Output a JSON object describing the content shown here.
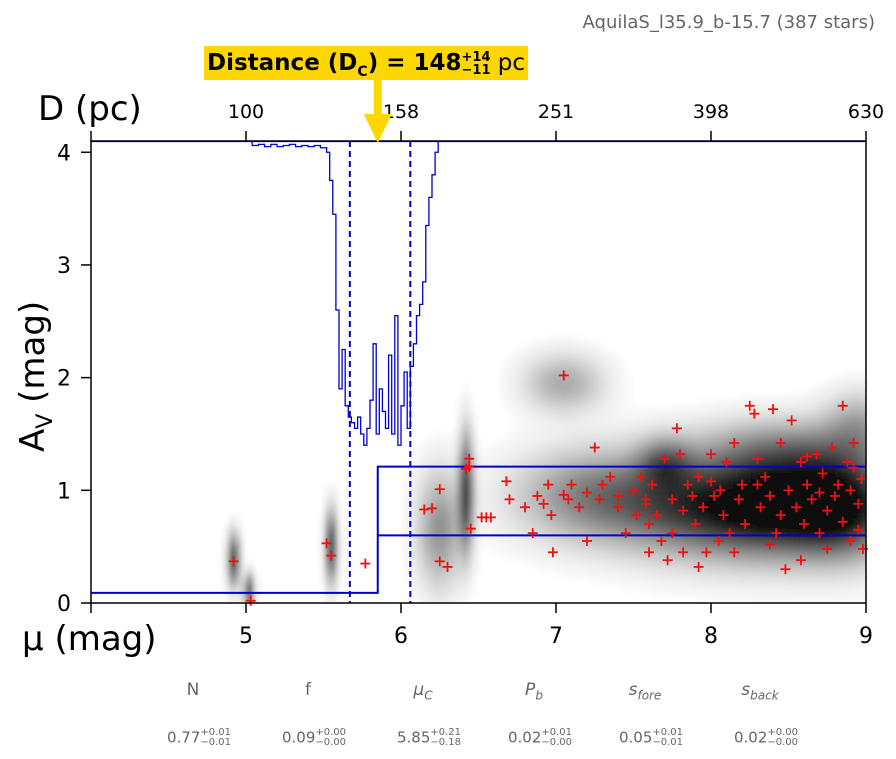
{
  "field_title": "AquilaS_l35.9_b-15.7 (387 stars)",
  "distance_annotation": {
    "prefix": "Distance (D",
    "subscript": "C",
    "middle": ") = 148",
    "plus": "+14",
    "minus": "−11",
    "unit": "pc"
  },
  "params": [
    {
      "label": "N",
      "sub": "",
      "italic": false,
      "value": "0.77",
      "plus": "+0.01",
      "minus": "−0.01"
    },
    {
      "label": "f",
      "sub": "",
      "italic": false,
      "value": "0.09",
      "plus": "+0.00",
      "minus": "−0.00"
    },
    {
      "label": "μ",
      "sub": "C",
      "italic": true,
      "value": "5.85",
      "plus": "+0.21",
      "minus": "−0.18"
    },
    {
      "label": "P",
      "sub": "b",
      "italic": true,
      "value": "0.02",
      "plus": "+0.01",
      "minus": "−0.00"
    },
    {
      "label": "s",
      "sub": "fore",
      "italic": true,
      "value": "0.05",
      "plus": "+0.01",
      "minus": "−0.01"
    },
    {
      "label": "s",
      "sub": "back",
      "italic": true,
      "value": "0.02",
      "plus": "+0.00",
      "minus": "−0.00"
    }
  ],
  "chart_data": {
    "type": "scatter",
    "xlabel": "μ (mag)",
    "ylabel": "A_V (mag)",
    "top_xlabel": "D (pc)",
    "xlim": [
      4,
      9
    ],
    "ylim": [
      0,
      4.1
    ],
    "xticks": [
      5,
      6,
      7,
      8,
      9
    ],
    "xtick_labels": [
      "5",
      "6",
      "7",
      "8",
      "9"
    ],
    "yticks": [
      0,
      1,
      2,
      3,
      4
    ],
    "ytick_labels": [
      "0",
      "1",
      "2",
      "3",
      "4"
    ],
    "top_ticks": [
      5,
      6,
      7,
      8,
      9
    ],
    "top_tick_labels": [
      "100",
      "158",
      "251",
      "398",
      "630"
    ],
    "colors": {
      "stars": "#ee1111",
      "model": "#0000cc",
      "annotation": "#ffd700"
    },
    "model_step": {
      "mu_c": 5.85,
      "foreground_av": 0.09,
      "background_low_av": 0.6,
      "background_high_av": 1.21
    },
    "uncertainty_lines": [
      5.67,
      6.06
    ],
    "distance_arrow_mu": 5.85,
    "posterior_histogram": [
      [
        5.0,
        4.1
      ],
      [
        5.04,
        4.06
      ],
      [
        5.08,
        4.07
      ],
      [
        5.12,
        4.05
      ],
      [
        5.16,
        4.07
      ],
      [
        5.2,
        4.05
      ],
      [
        5.24,
        4.06
      ],
      [
        5.28,
        4.07
      ],
      [
        5.32,
        4.05
      ],
      [
        5.36,
        4.06
      ],
      [
        5.4,
        4.05
      ],
      [
        5.44,
        4.06
      ],
      [
        5.48,
        4.04
      ],
      [
        5.52,
        4.0
      ],
      [
        5.54,
        3.75
      ],
      [
        5.56,
        3.45
      ],
      [
        5.58,
        2.6
      ],
      [
        5.6,
        1.9
      ],
      [
        5.62,
        2.25
      ],
      [
        5.64,
        1.75
      ],
      [
        5.66,
        1.65
      ],
      [
        5.68,
        1.6
      ],
      [
        5.7,
        1.55
      ],
      [
        5.72,
        1.65
      ],
      [
        5.74,
        1.5
      ],
      [
        5.76,
        1.4
      ],
      [
        5.78,
        1.55
      ],
      [
        5.8,
        1.8
      ],
      [
        5.82,
        2.3
      ],
      [
        5.84,
        1.5
      ],
      [
        5.86,
        1.9
      ],
      [
        5.88,
        1.7
      ],
      [
        5.9,
        1.55
      ],
      [
        5.92,
        2.2
      ],
      [
        5.94,
        1.5
      ],
      [
        5.96,
        2.55
      ],
      [
        5.98,
        1.4
      ],
      [
        6.0,
        1.75
      ],
      [
        6.02,
        2.05
      ],
      [
        6.04,
        1.55
      ],
      [
        6.06,
        2.1
      ],
      [
        6.08,
        2.3
      ],
      [
        6.1,
        2.55
      ],
      [
        6.12,
        2.65
      ],
      [
        6.14,
        2.85
      ],
      [
        6.16,
        3.35
      ],
      [
        6.18,
        3.6
      ],
      [
        6.2,
        3.8
      ],
      [
        6.22,
        4.0
      ],
      [
        6.24,
        4.1
      ]
    ],
    "density_blobs": [
      {
        "mu": 4.92,
        "av": 0.38,
        "smu": 0.025,
        "sav": 0.16,
        "w": 0.9
      },
      {
        "mu": 5.02,
        "av": 0.1,
        "smu": 0.02,
        "sav": 0.1,
        "w": 1.0
      },
      {
        "mu": 5.55,
        "av": 0.5,
        "smu": 0.025,
        "sav": 0.22,
        "w": 0.9
      },
      {
        "mu": 6.42,
        "av": 1.0,
        "smu": 0.03,
        "sav": 0.35,
        "w": 0.85
      },
      {
        "mu": 6.25,
        "av": 0.65,
        "smu": 0.1,
        "sav": 0.35,
        "w": 0.45
      },
      {
        "mu": 7.05,
        "av": 1.95,
        "smu": 0.18,
        "sav": 0.18,
        "w": 0.35
      },
      {
        "mu": 7.7,
        "av": 1.25,
        "smu": 0.12,
        "sav": 0.15,
        "w": 0.4
      },
      {
        "mu": 7.25,
        "av": 0.95,
        "smu": 0.35,
        "sav": 0.28,
        "w": 0.5
      },
      {
        "mu": 7.9,
        "av": 0.85,
        "smu": 0.35,
        "sav": 0.3,
        "w": 0.65
      },
      {
        "mu": 8.4,
        "av": 0.85,
        "smu": 0.3,
        "sav": 0.3,
        "w": 0.8
      },
      {
        "mu": 8.85,
        "av": 0.85,
        "smu": 0.25,
        "sav": 0.3,
        "w": 0.95
      },
      {
        "mu": 8.5,
        "av": 1.35,
        "smu": 0.4,
        "sav": 0.2,
        "w": 0.4
      },
      {
        "mu": 8.95,
        "av": 1.6,
        "smu": 0.15,
        "sav": 0.2,
        "w": 0.3
      }
    ],
    "stars": [
      [
        4.92,
        0.37
      ],
      [
        5.03,
        0.02
      ],
      [
        5.52,
        0.53
      ],
      [
        5.55,
        0.42
      ],
      [
        5.77,
        0.35
      ],
      [
        6.15,
        0.83
      ],
      [
        6.2,
        0.84
      ],
      [
        6.25,
        1.01
      ],
      [
        6.25,
        0.37
      ],
      [
        6.3,
        0.32
      ],
      [
        6.42,
        1.19
      ],
      [
        6.44,
        1.28
      ],
      [
        6.44,
        1.21
      ],
      [
        6.45,
        0.66
      ],
      [
        6.52,
        0.76
      ],
      [
        6.55,
        0.76
      ],
      [
        6.58,
        0.76
      ],
      [
        6.68,
        1.08
      ],
      [
        6.7,
        0.92
      ],
      [
        6.8,
        0.85
      ],
      [
        6.85,
        0.62
      ],
      [
        6.88,
        0.95
      ],
      [
        6.92,
        0.88
      ],
      [
        6.95,
        1.05
      ],
      [
        6.97,
        0.78
      ],
      [
        6.98,
        0.45
      ],
      [
        7.05,
        2.02
      ],
      [
        7.05,
        0.96
      ],
      [
        7.08,
        0.92
      ],
      [
        7.1,
        1.05
      ],
      [
        7.15,
        0.85
      ],
      [
        7.2,
        0.98
      ],
      [
        7.2,
        0.55
      ],
      [
        7.25,
        1.38
      ],
      [
        7.28,
        0.92
      ],
      [
        7.3,
        1.05
      ],
      [
        7.35,
        1.12
      ],
      [
        7.4,
        0.85
      ],
      [
        7.45,
        0.62
      ],
      [
        7.5,
        1.0
      ],
      [
        7.52,
        0.78
      ],
      [
        7.55,
        1.12
      ],
      [
        7.58,
        0.92
      ],
      [
        7.6,
        0.7
      ],
      [
        7.6,
        0.45
      ],
      [
        7.62,
        1.05
      ],
      [
        7.65,
        0.78
      ],
      [
        7.7,
        1.28
      ],
      [
        7.72,
        0.38
      ],
      [
        7.75,
        0.92
      ],
      [
        7.75,
        0.62
      ],
      [
        7.78,
        1.55
      ],
      [
        7.8,
        1.32
      ],
      [
        7.82,
        0.82
      ],
      [
        7.82,
        0.45
      ],
      [
        7.85,
        1.05
      ],
      [
        7.88,
        0.95
      ],
      [
        7.9,
        0.7
      ],
      [
        7.92,
        1.12
      ],
      [
        7.95,
        0.85
      ],
      [
        7.97,
        0.45
      ],
      [
        8.0,
        1.08
      ],
      [
        8.02,
        0.95
      ],
      [
        8.05,
        0.55
      ],
      [
        8.06,
        1.0
      ],
      [
        8.08,
        0.78
      ],
      [
        8.1,
        1.25
      ],
      [
        8.12,
        0.62
      ],
      [
        8.15,
        1.42
      ],
      [
        8.18,
        0.92
      ],
      [
        8.2,
        1.05
      ],
      [
        8.22,
        0.7
      ],
      [
        8.25,
        1.75
      ],
      [
        8.28,
        1.68
      ],
      [
        8.3,
        1.05
      ],
      [
        8.32,
        0.85
      ],
      [
        8.35,
        1.12
      ],
      [
        8.38,
        0.95
      ],
      [
        8.4,
        1.72
      ],
      [
        8.42,
        0.62
      ],
      [
        8.45,
        1.42
      ],
      [
        8.48,
        0.3
      ],
      [
        8.5,
        1.0
      ],
      [
        8.52,
        1.62
      ],
      [
        8.55,
        0.85
      ],
      [
        8.58,
        1.25
      ],
      [
        8.6,
        0.7
      ],
      [
        8.62,
        1.05
      ],
      [
        8.65,
        0.92
      ],
      [
        8.68,
        1.32
      ],
      [
        8.7,
        0.62
      ],
      [
        8.72,
        1.15
      ],
      [
        8.75,
        0.82
      ],
      [
        8.78,
        1.38
      ],
      [
        8.8,
        0.95
      ],
      [
        8.82,
        1.05
      ],
      [
        8.85,
        1.75
      ],
      [
        8.85,
        0.72
      ],
      [
        8.88,
        1.25
      ],
      [
        8.9,
        0.55
      ],
      [
        8.9,
        1.0
      ],
      [
        8.92,
        1.42
      ],
      [
        8.95,
        0.88
      ],
      [
        8.97,
        1.1
      ],
      [
        8.98,
        0.48
      ],
      [
        7.4,
        0.95
      ],
      [
        7.68,
        0.55
      ],
      [
        7.92,
        0.32
      ],
      [
        8.15,
        0.45
      ],
      [
        8.38,
        0.52
      ],
      [
        8.58,
        0.38
      ],
      [
        8.75,
        0.48
      ],
      [
        8.0,
        1.32
      ],
      [
        8.3,
        1.28
      ],
      [
        8.62,
        1.3
      ],
      [
        8.92,
        1.2
      ],
      [
        7.58,
        0.88
      ],
      [
        8.45,
        0.78
      ],
      [
        8.7,
        0.98
      ],
      [
        8.95,
        0.65
      ]
    ]
  }
}
